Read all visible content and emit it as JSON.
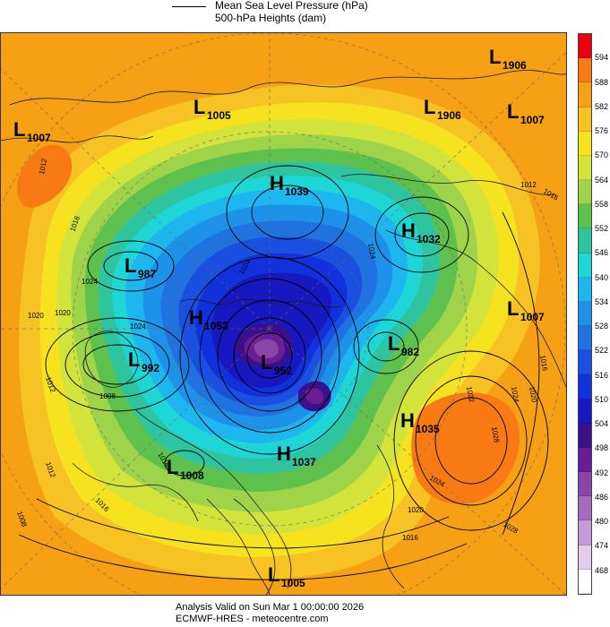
{
  "legend": {
    "line_label": "Mean Sea Level Pressure (hPa)",
    "fill_label": "500-hPa Heights (dam)"
  },
  "footer": {
    "valid_text": "Analysis Valid on Sun Mar  1 00:00:00 2026",
    "source_text": "ECMWF-HRES  - meteocentre.com"
  },
  "colorbar": {
    "levels": [
      {
        "value": "594",
        "color": "#e8000e"
      },
      {
        "value": "588",
        "color": "#f77b12"
      },
      {
        "value": "582",
        "color": "#f5a015"
      },
      {
        "value": "576",
        "color": "#f6c224"
      },
      {
        "value": "570",
        "color": "#f6e21f"
      },
      {
        "value": "564",
        "color": "#d2e43b"
      },
      {
        "value": "558",
        "color": "#9ed34a"
      },
      {
        "value": "552",
        "color": "#5fc14d"
      },
      {
        "value": "546",
        "color": "#2fc4a0"
      },
      {
        "value": "540",
        "color": "#1ed6d6"
      },
      {
        "value": "534",
        "color": "#1db6ef"
      },
      {
        "value": "528",
        "color": "#1d92e8"
      },
      {
        "value": "522",
        "color": "#1f72e0"
      },
      {
        "value": "516",
        "color": "#1a4fe0"
      },
      {
        "value": "510",
        "color": "#1031dc"
      },
      {
        "value": "504",
        "color": "#1818c0"
      },
      {
        "value": "498",
        "color": "#3a118a"
      },
      {
        "value": "492",
        "color": "#6a1e95"
      },
      {
        "value": "486",
        "color": "#8a46a6"
      },
      {
        "value": "480",
        "color": "#a56cbe"
      },
      {
        "value": "474",
        "color": "#c59ad6"
      },
      {
        "value": "468",
        "color": "#e2ccec"
      },
      {
        "value": "",
        "color": "#ffffff"
      }
    ]
  },
  "pressure_systems": [
    {
      "type": "L",
      "value": "1906"
    },
    {
      "type": "L",
      "value": "1005"
    },
    {
      "type": "L",
      "value": "1906"
    },
    {
      "type": "L",
      "value": "1007"
    },
    {
      "type": "L",
      "value": "1007"
    },
    {
      "type": "H",
      "value": "1039"
    },
    {
      "type": "H",
      "value": "1032"
    },
    {
      "type": "L",
      "value": "987"
    },
    {
      "type": "H",
      "value": "1053"
    },
    {
      "type": "L",
      "value": "1007"
    },
    {
      "type": "L",
      "value": "992"
    },
    {
      "type": "L",
      "value": "982"
    },
    {
      "type": "L",
      "value": "952"
    },
    {
      "type": "H",
      "value": "1035"
    },
    {
      "type": "L",
      "value": "1008"
    },
    {
      "type": "H",
      "value": "1037"
    },
    {
      "type": "L",
      "value": "1005"
    }
  ],
  "isobar_labels": [
    "1012",
    "1016",
    "1020",
    "1024",
    "1012",
    "1020",
    "1024",
    "1016",
    "1012",
    "1016",
    "1008",
    "1008",
    "1024",
    "1024",
    "1016",
    "1020",
    "1032",
    "1028",
    "1024",
    "1028",
    "1024",
    "1020",
    "1016",
    "1016",
    "1012"
  ]
}
